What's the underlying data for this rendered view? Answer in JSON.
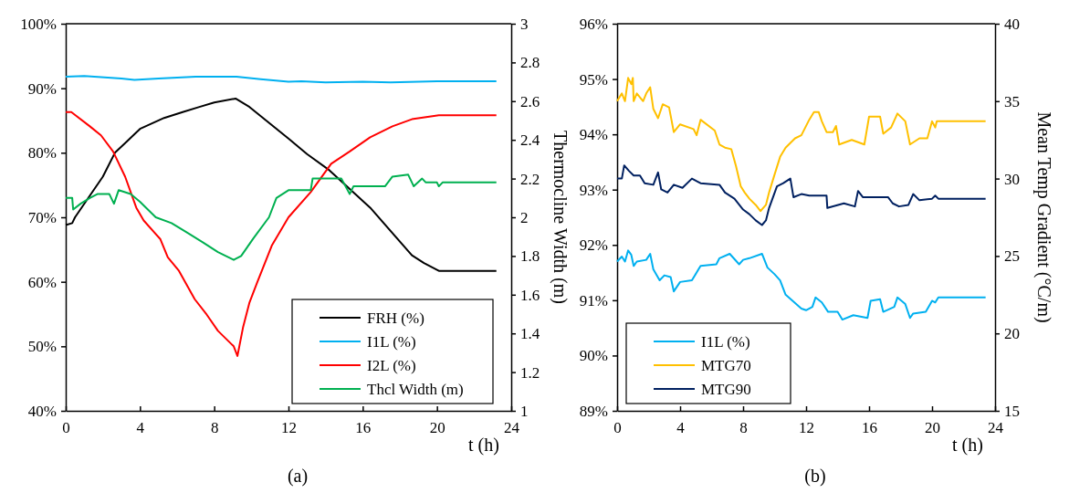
{
  "chart_data": [
    {
      "type": "line",
      "xlabel": "t (h)",
      "y2label": "Thermocline Width (m)",
      "xlim": [
        0,
        24
      ],
      "xticks": [
        0,
        4,
        8,
        12,
        16,
        20,
        24
      ],
      "ylim": [
        40,
        100
      ],
      "yticks": [
        {
          "value": 40,
          "label": "40%"
        },
        {
          "value": 50,
          "label": "50%"
        },
        {
          "value": 60,
          "label": "60%"
        },
        {
          "value": 70,
          "label": "70%"
        },
        {
          "value": 80,
          "label": "80%"
        },
        {
          "value": 90,
          "label": "90%"
        },
        {
          "value": 100,
          "label": "100%"
        }
      ],
      "y2lim": [
        1,
        3
      ],
      "y2ticks": [
        1,
        1.2,
        1.4,
        1.6,
        1.8,
        2,
        2.2,
        2.4,
        2.6,
        2.8,
        3
      ],
      "legend": "bottom right",
      "grid": false,
      "annotations": [
        "(a)"
      ],
      "series": [
        {
          "name": "FRH (%)",
          "color": "#000000",
          "x": [
            0,
            0.35,
            0.5,
            2.0,
            2.65,
            3.2,
            4,
            5.3,
            6.3,
            7.2,
            8,
            9.15,
            9.9,
            12,
            13,
            14.2,
            16.4,
            18.65,
            19.3,
            20.1,
            23.2
          ],
          "values": [
            68.8,
            69.1,
            70,
            76.3,
            80,
            81.5,
            83.7,
            85.4,
            86.3,
            87.1,
            87.8,
            88.4,
            87.1,
            82.2,
            79.8,
            77.3,
            71.5,
            64.1,
            62.9,
            61.7,
            61.7
          ]
        },
        {
          "name": "I1L (%)",
          "color": "#00b0f0",
          "x": [
            0,
            1,
            3,
            3.7,
            5,
            7,
            9.2,
            10.5,
            12,
            12.7,
            14,
            16,
            17.5,
            19,
            20,
            23.2
          ],
          "values": [
            91.8,
            91.9,
            91.5,
            91.3,
            91.5,
            91.8,
            91.8,
            91.4,
            91.0,
            91.1,
            90.9,
            91.0,
            90.9,
            91.0,
            91.1,
            91.1
          ]
        },
        {
          "name": "I2L (%)",
          "color": "#ff0000",
          "x": [
            0,
            0.3,
            1.3,
            1.9,
            2.55,
            3.2,
            3.8,
            4.2,
            5.1,
            5.5,
            6.1,
            6.95,
            7.6,
            8.2,
            9.05,
            9.25,
            9.55,
            9.9,
            10.3,
            11.1,
            12,
            13.2,
            14.3,
            15.3,
            16.4,
            17.6,
            18.65,
            20.1,
            23.2
          ],
          "values": [
            86.3,
            86.3,
            84.1,
            82.7,
            80.2,
            76.3,
            71.5,
            69.5,
            66.6,
            63.8,
            61.7,
            57.3,
            54.9,
            52.4,
            50,
            48.5,
            52.9,
            56.8,
            59.8,
            65.6,
            70,
            73.9,
            78.3,
            80.2,
            82.4,
            84.1,
            85.2,
            85.8,
            85.8
          ]
        },
        {
          "name": "Thcl Width (m)",
          "color": "#00b050",
          "axis": "y2",
          "x": [
            0,
            0.35,
            0.4,
            0.8,
            1.3,
            1.7,
            2.35,
            2.6,
            2.85,
            3.5,
            4,
            4.85,
            5.7,
            6.55,
            7.4,
            8.2,
            9.05,
            9.45,
            10.1,
            10.95,
            11.35,
            12,
            13.2,
            13.3,
            14.85,
            15.3,
            15.5,
            17.2,
            17.6,
            18.45,
            18.75,
            19.2,
            19.4,
            20,
            20.1,
            20.3,
            23.2
          ],
          "values": [
            2.1,
            2.1,
            2.04,
            2.07,
            2.1,
            2.12,
            2.12,
            2.07,
            2.14,
            2.12,
            2.08,
            2.0,
            1.97,
            1.92,
            1.87,
            1.82,
            1.78,
            1.8,
            1.89,
            2.0,
            2.1,
            2.14,
            2.14,
            2.2,
            2.2,
            2.12,
            2.16,
            2.16,
            2.21,
            2.22,
            2.16,
            2.2,
            2.18,
            2.18,
            2.16,
            2.18,
            2.18
          ]
        }
      ]
    },
    {
      "type": "line",
      "xlabel": "t (h)",
      "y2label": "Mean Temp Gradient (°C/m)",
      "xlim": [
        0,
        24
      ],
      "xticks": [
        0,
        4,
        8,
        12,
        16,
        20,
        24
      ],
      "ylim": [
        89,
        96
      ],
      "yticks": [
        {
          "value": 89,
          "label": "89%"
        },
        {
          "value": 90,
          "label": "90%"
        },
        {
          "value": 91,
          "label": "91%"
        },
        {
          "value": 92,
          "label": "92%"
        },
        {
          "value": 93,
          "label": "93%"
        },
        {
          "value": 94,
          "label": "94%"
        },
        {
          "value": 95,
          "label": "95%"
        },
        {
          "value": 96,
          "label": "96%"
        }
      ],
      "y2lim": [
        15,
        40
      ],
      "y2ticks": [
        15,
        20,
        25,
        30,
        35,
        40
      ],
      "legend": "bottom left",
      "grid": false,
      "annotations": [
        "(b)"
      ],
      "series": [
        {
          "name": "I1L (%)",
          "color": "#00b0f0",
          "x": [
            0,
            0.3,
            0.5,
            0.7,
            0.9,
            1.05,
            1.25,
            1.85,
            2.1,
            2.3,
            2.7,
            3,
            3.4,
            3.6,
            4,
            4.75,
            5.3,
            6.3,
            6.5,
            7.15,
            7.75,
            8,
            8.4,
            9.2,
            9.55,
            10,
            10.35,
            10.7,
            11.7,
            12,
            12.4,
            12.6,
            13,
            13.4,
            14,
            14.3,
            15,
            15.9,
            16.1,
            16.7,
            16.9,
            17.6,
            17.8,
            18.3,
            18.6,
            18.8,
            19.6,
            20,
            20.2,
            20.4,
            23.4
          ],
          "values": [
            91.7,
            91.79,
            91.7,
            91.9,
            91.82,
            91.62,
            91.7,
            91.73,
            91.84,
            91.56,
            91.36,
            91.45,
            91.42,
            91.16,
            91.33,
            91.36,
            91.62,
            91.65,
            91.76,
            91.84,
            91.65,
            91.73,
            91.76,
            91.84,
            91.59,
            91.47,
            91.36,
            91.1,
            90.85,
            90.82,
            90.88,
            91.05,
            90.96,
            90.79,
            90.79,
            90.65,
            90.73,
            90.68,
            90.99,
            91.02,
            90.79,
            90.88,
            91.05,
            90.93,
            90.68,
            90.76,
            90.79,
            90.99,
            90.96,
            91.05,
            91.05
          ]
        },
        {
          "name": "MTG70",
          "color": "#ffc000",
          "axis": "y2",
          "x": [
            0,
            0.3,
            0.5,
            0.7,
            0.9,
            1.0,
            1.05,
            1.25,
            1.65,
            1.85,
            2.1,
            2.3,
            2.6,
            2.9,
            3.3,
            3.6,
            4,
            4.85,
            5.05,
            5.3,
            6.2,
            6.5,
            6.85,
            7.25,
            7.55,
            7.85,
            8.1,
            8.4,
            8.8,
            9.1,
            9.45,
            9.65,
            9.95,
            10.35,
            10.7,
            11.3,
            11.7,
            12.2,
            12.5,
            12.8,
            13,
            13.3,
            13.7,
            13.9,
            14.1,
            14.9,
            15.7,
            16,
            16.7,
            16.9,
            17.4,
            17.8,
            18.3,
            18.6,
            19.2,
            19.7,
            20,
            20.2,
            20.3,
            23.4
          ],
          "values": [
            35.0,
            35.5,
            35.0,
            36.5,
            36.1,
            36.5,
            35.0,
            35.5,
            35.0,
            35.5,
            35.9,
            34.5,
            33.9,
            34.8,
            34.6,
            33.0,
            33.5,
            33.2,
            32.8,
            33.8,
            33.1,
            32.2,
            32.0,
            31.9,
            30.8,
            29.5,
            29.1,
            28.7,
            28.3,
            27.9,
            28.3,
            29.1,
            30.1,
            31.4,
            32.0,
            32.6,
            32.8,
            33.8,
            34.3,
            34.3,
            33.7,
            33.0,
            33.0,
            33.4,
            32.2,
            32.5,
            32.2,
            34.0,
            34.0,
            32.9,
            33.3,
            34.2,
            33.7,
            32.2,
            32.6,
            32.6,
            33.7,
            33.3,
            33.7,
            33.7
          ]
        },
        {
          "name": "MTG90",
          "color": "#002060",
          "axis": "y2",
          "x": [
            0,
            0.3,
            0.45,
            0.75,
            1.05,
            1.45,
            1.75,
            2.3,
            2.6,
            2.8,
            3.2,
            3.6,
            4.15,
            4.75,
            5.3,
            6.5,
            6.85,
            7.45,
            8,
            8.4,
            8.8,
            9.2,
            9.45,
            9.65,
            10.15,
            10.55,
            11.0,
            11.2,
            11.7,
            12.2,
            13.3,
            13.35,
            14.4,
            15.1,
            15.3,
            15.6,
            17.2,
            17.5,
            17.9,
            18.5,
            18.8,
            19.2,
            20.0,
            20.2,
            20.4,
            23.4
          ],
          "values": [
            30.0,
            30.0,
            30.85,
            30.5,
            30.2,
            30.2,
            29.7,
            29.6,
            30.4,
            29.3,
            29.1,
            29.6,
            29.4,
            30.0,
            29.7,
            29.6,
            29.1,
            28.7,
            28.0,
            27.7,
            27.3,
            27.0,
            27.3,
            28.1,
            29.5,
            29.7,
            30.0,
            28.8,
            29.0,
            28.9,
            28.9,
            28.1,
            28.4,
            28.2,
            29.2,
            28.8,
            28.8,
            28.4,
            28.2,
            28.3,
            29.0,
            28.6,
            28.7,
            28.9,
            28.7,
            28.7
          ]
        }
      ]
    }
  ]
}
